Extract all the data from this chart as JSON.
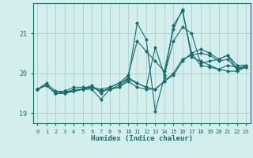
{
  "xlabel": "Humidex (Indice chaleur)",
  "ylabel": "",
  "bg_color": "#d4eeee",
  "grid_color": "#aed4d4",
  "line_color": "#1a6b6b",
  "marker": "D",
  "markersize": 2.0,
  "linewidth": 0.8,
  "xlim": [
    -0.5,
    23.5
  ],
  "ylim": [
    18.75,
    21.75
  ],
  "yticks": [
    19,
    20,
    21
  ],
  "xticks": [
    0,
    1,
    2,
    3,
    4,
    5,
    6,
    7,
    8,
    9,
    10,
    11,
    12,
    13,
    14,
    15,
    16,
    17,
    18,
    19,
    20,
    21,
    22,
    23
  ],
  "series": [
    {
      "x": [
        0,
        1,
        2,
        3,
        4,
        5,
        6,
        7,
        8,
        9,
        10,
        11,
        12,
        13,
        14,
        15,
        16,
        17,
        18,
        19,
        20,
        21,
        22,
        23
      ],
      "y": [
        19.6,
        19.75,
        19.55,
        19.55,
        19.65,
        19.65,
        19.65,
        19.6,
        19.65,
        19.75,
        19.85,
        21.25,
        20.85,
        19.05,
        19.9,
        21.2,
        21.55,
        20.5,
        20.2,
        20.15,
        20.1,
        20.05,
        20.05,
        20.15
      ]
    },
    {
      "x": [
        0,
        1,
        2,
        3,
        4,
        5,
        6,
        7,
        8,
        9,
        10,
        11,
        12,
        13,
        14,
        15,
        16,
        17,
        18,
        19,
        20,
        21,
        22,
        23
      ],
      "y": [
        19.6,
        19.7,
        19.5,
        19.5,
        19.6,
        19.6,
        19.7,
        19.5,
        19.65,
        19.75,
        19.95,
        20.8,
        20.55,
        20.3,
        20.05,
        21.1,
        21.6,
        20.4,
        20.3,
        20.2,
        20.1,
        20.2,
        20.15,
        20.15
      ]
    },
    {
      "x": [
        0,
        1,
        2,
        3,
        4,
        5,
        6,
        7,
        8,
        9,
        10,
        11,
        12,
        13,
        14,
        15,
        16,
        17,
        18,
        19,
        20,
        21,
        22,
        23
      ],
      "y": [
        19.6,
        19.7,
        19.5,
        19.55,
        19.55,
        19.6,
        19.6,
        19.35,
        19.6,
        19.7,
        19.9,
        19.75,
        19.65,
        20.65,
        19.95,
        20.8,
        21.15,
        21.0,
        20.25,
        20.3,
        20.35,
        20.45,
        20.1,
        20.2
      ]
    },
    {
      "x": [
        0,
        1,
        2,
        3,
        4,
        5,
        6,
        7,
        8,
        9,
        10,
        11,
        12,
        13,
        14,
        15,
        16,
        17,
        18,
        19,
        20,
        21,
        22,
        23
      ],
      "y": [
        19.6,
        19.7,
        19.5,
        19.5,
        19.55,
        19.6,
        19.65,
        19.55,
        19.6,
        19.65,
        19.85,
        19.75,
        19.65,
        19.6,
        19.8,
        19.95,
        20.3,
        20.5,
        20.6,
        20.5,
        20.35,
        20.45,
        20.2,
        20.2
      ]
    },
    {
      "x": [
        0,
        1,
        2,
        3,
        4,
        5,
        6,
        7,
        8,
        9,
        10,
        11,
        12,
        13,
        14,
        15,
        16,
        17,
        18,
        19,
        20,
        21,
        22,
        23
      ],
      "y": [
        19.6,
        19.7,
        19.5,
        19.5,
        19.55,
        19.6,
        19.65,
        19.55,
        19.6,
        19.65,
        19.8,
        19.65,
        19.6,
        19.6,
        19.8,
        20.0,
        20.35,
        20.45,
        20.5,
        20.45,
        20.3,
        20.35,
        20.1,
        20.15
      ]
    }
  ]
}
